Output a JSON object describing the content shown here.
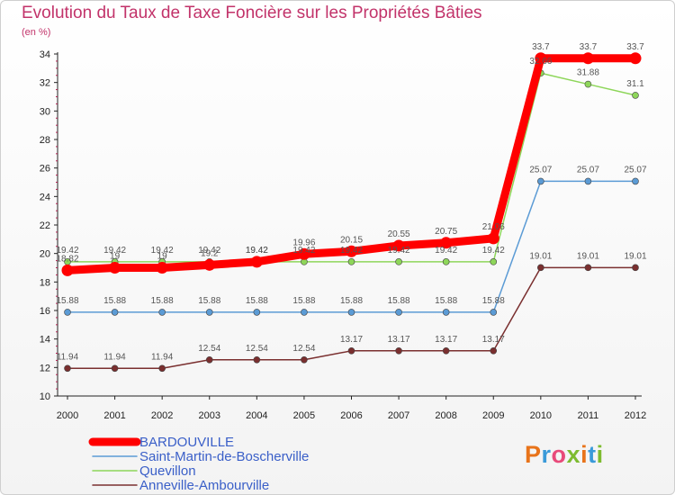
{
  "header": {
    "title": "Evolution du Taux de Taxe Foncière sur les Propriétés Bâties",
    "subtitle": "(en %)"
  },
  "brand": {
    "logo_letters": [
      "P",
      "r",
      "o",
      "x",
      "i",
      "t",
      "i"
    ],
    "logo_colors": [
      "#e8731a",
      "#3a9ad9",
      "#e84a7a",
      "#7dbb2f",
      "#e8731a",
      "#3a9ad9",
      "#7dbb2f"
    ]
  },
  "chart_data": {
    "type": "line",
    "title": "Evolution du Taux de Taxe Foncière sur les Propriétés Bâties",
    "ylabel": "(en %)",
    "xlabel": "",
    "ylim": [
      10,
      34
    ],
    "yticks": [
      10,
      12,
      14,
      16,
      18,
      20,
      22,
      24,
      26,
      28,
      30,
      32,
      34
    ],
    "grid": false,
    "legend_position": "bottom-left",
    "categories": [
      "2000",
      "2001",
      "2002",
      "2003",
      "2004",
      "2005",
      "2006",
      "2007",
      "2008",
      "2009",
      "2010",
      "2011",
      "2012"
    ],
    "series": [
      {
        "name": "BARDOUVILLE",
        "color": "#ff0000",
        "values": [
          18.82,
          19,
          19,
          19.2,
          19.42,
          19.96,
          20.15,
          20.55,
          20.75,
          21.06,
          33.7,
          33.7,
          33.7
        ],
        "labels": [
          "18.82",
          "19",
          "19",
          "19.2",
          "19.42",
          "19.96",
          "20.15",
          "20.55",
          "20.75",
          "21.06",
          "33.7",
          "33.7",
          "33.7"
        ]
      },
      {
        "name": "Saint-Martin-de-Boscherville",
        "color": "#5b9bd5",
        "values": [
          15.88,
          15.88,
          15.88,
          15.88,
          15.88,
          15.88,
          15.88,
          15.88,
          15.88,
          15.88,
          25.07,
          25.07,
          25.07
        ],
        "labels": [
          "15.88",
          "15.88",
          "15.88",
          "15.88",
          "15.88",
          "15.88",
          "15.88",
          "15.88",
          "15.88",
          "15.88",
          "25.07",
          "25.07",
          "25.07"
        ]
      },
      {
        "name": "Quevillon",
        "color": "#8ed65a",
        "values": [
          19.42,
          19.42,
          19.42,
          19.42,
          19.42,
          19.42,
          19.42,
          19.42,
          19.42,
          19.42,
          32.66,
          31.88,
          31.1
        ],
        "labels": [
          "19.42",
          "19.42",
          "19.42",
          "19.42",
          "19.42",
          "19.42",
          "19.42",
          "19.42",
          "19.42",
          "19.42",
          "32.66",
          "31.88",
          "31.1"
        ]
      },
      {
        "name": "Anneville-Ambourville",
        "color": "#7a2f2f",
        "values": [
          11.94,
          11.94,
          11.94,
          12.54,
          12.54,
          12.54,
          13.17,
          13.17,
          13.17,
          13.17,
          19.01,
          19.01,
          19.01
        ],
        "labels": [
          "11.94",
          "11.94",
          "11.94",
          "12.54",
          "12.54",
          "12.54",
          "13.17",
          "13.17",
          "13.17",
          "13.17",
          "19.01",
          "19.01",
          "19.01"
        ]
      }
    ]
  }
}
